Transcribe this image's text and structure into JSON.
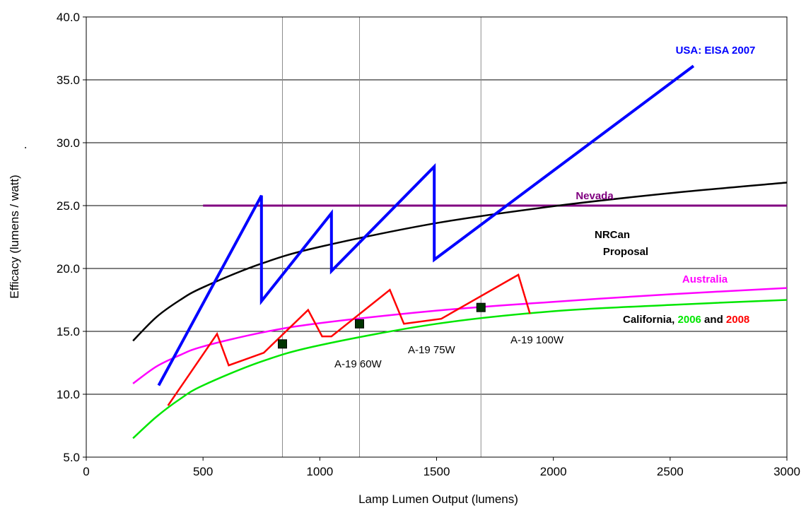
{
  "chart_data": {
    "type": "line",
    "xlabel": "Lamp Lumen Output (lumens)",
    "ylabel": "Efficacy (lumens / watt)",
    "ylabel_suffix": ".",
    "xlim": [
      0,
      3000
    ],
    "ylim": [
      5,
      40
    ],
    "xticks": [
      0,
      500,
      1000,
      1500,
      2000,
      2500,
      3000
    ],
    "xtick_labels": [
      "0",
      "500",
      "1000",
      "1500",
      "2000",
      "2500",
      "3000"
    ],
    "yticks": [
      5,
      10,
      15,
      20,
      25,
      30,
      35,
      40
    ],
    "ytick_labels": [
      "5.0",
      "10.0",
      "15.0",
      "20.0",
      "25.0",
      "30.0",
      "35.0",
      "40.0"
    ],
    "grid": "horizontal major gridlines; vertical reference lines at A-19 60W, 75W, 100W outputs",
    "vertical_refs": [
      840,
      1170,
      1690
    ],
    "series": [
      {
        "name": "USA: EISA 2007",
        "color": "#0000ff",
        "points": [
          [
            310,
            10.7
          ],
          [
            750,
            25.8
          ],
          [
            750,
            17.4
          ],
          [
            1050,
            24.4
          ],
          [
            1050,
            19.8
          ],
          [
            1490,
            28.1
          ],
          [
            1490,
            20.7
          ],
          [
            2600,
            36.1
          ]
        ]
      },
      {
        "name": "Nevada",
        "color": "#800080",
        "points": [
          [
            500,
            25.0
          ],
          [
            3000,
            25.0
          ]
        ]
      },
      {
        "name": "NRCan Proposal",
        "color": "#000000",
        "points": [
          [
            200,
            14.25
          ],
          [
            300,
            16.13
          ],
          [
            400,
            17.47
          ],
          [
            500,
            18.5
          ],
          [
            750,
            20.39
          ],
          [
            1000,
            21.72
          ],
          [
            1500,
            23.61
          ],
          [
            2000,
            24.95
          ],
          [
            2500,
            25.99
          ],
          [
            3000,
            26.83
          ]
        ]
      },
      {
        "name": "Australia",
        "color": "#ff00ff",
        "points": [
          [
            200,
            10.85
          ],
          [
            300,
            12.2
          ],
          [
            400,
            13.1
          ],
          [
            500,
            13.8
          ],
          [
            750,
            14.9
          ],
          [
            1000,
            15.65
          ],
          [
            1500,
            16.65
          ],
          [
            2000,
            17.35
          ],
          [
            2500,
            17.95
          ],
          [
            3000,
            18.45
          ]
        ]
      },
      {
        "name": "California 2006",
        "color": "#00e600",
        "points": [
          [
            200,
            6.5
          ],
          [
            300,
            8.2
          ],
          [
            400,
            9.6
          ],
          [
            500,
            10.7
          ],
          [
            750,
            12.6
          ],
          [
            1000,
            13.9
          ],
          [
            1500,
            15.6
          ],
          [
            2000,
            16.6
          ],
          [
            2500,
            17.1
          ],
          [
            3000,
            17.5
          ]
        ]
      },
      {
        "name": "California 2008",
        "color": "#ff0000",
        "points": [
          [
            350,
            9.1
          ],
          [
            560,
            14.8
          ],
          [
            610,
            12.3
          ],
          [
            760,
            13.3
          ],
          [
            950,
            16.7
          ],
          [
            1010,
            14.6
          ],
          [
            1050,
            14.6
          ],
          [
            1300,
            18.3
          ],
          [
            1360,
            15.6
          ],
          [
            1520,
            16.0
          ],
          [
            1850,
            19.5
          ],
          [
            1900,
            16.4
          ]
        ]
      },
      {
        "name": "A-19 lamps",
        "color": "#003300",
        "marker": "square",
        "points": [
          [
            840,
            14.0
          ],
          [
            1170,
            15.6
          ],
          [
            1690,
            16.9
          ]
        ]
      }
    ],
    "annotations": {
      "usa": "USA: EISA 2007",
      "nevada": "Nevada",
      "nrcan_line1": "NRCan",
      "nrcan_line2": "Proposal",
      "australia": "Australia",
      "california_prefix": "California, ",
      "california_2006": "2006",
      "california_and": " and ",
      "california_2008": "2008",
      "a19_60": "A-19 60W",
      "a19_75": "A-19 75W",
      "a19_100": "A-19 100W"
    }
  }
}
